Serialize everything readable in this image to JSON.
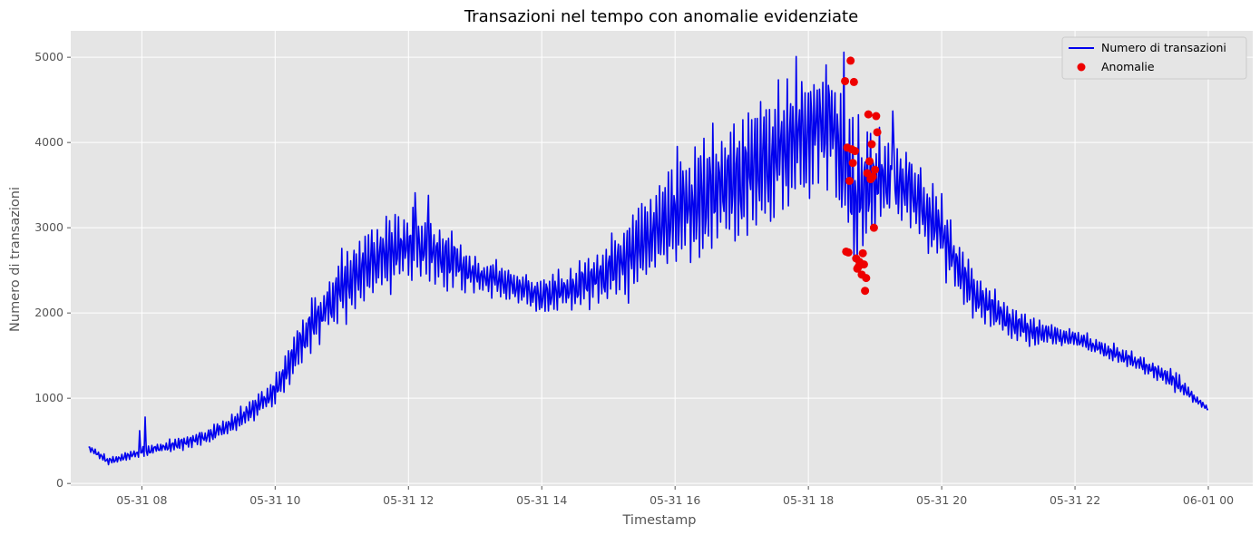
{
  "chart_data": {
    "type": "line",
    "title": "Transazioni nel tempo con anomalie evidenziate",
    "xlabel": "Timestamp",
    "ylabel": "Numero di transazioni",
    "x_range": [
      "2024-05-31T06:56",
      "2024-06-01T00:40"
    ],
    "ylim": [
      -30,
      5310
    ],
    "x_ticks": [
      "05-31 08",
      "05-31 10",
      "05-31 12",
      "05-31 14",
      "05-31 16",
      "05-31 18",
      "05-31 20",
      "05-31 22",
      "06-01 00"
    ],
    "y_ticks": [
      0,
      1000,
      2000,
      3000,
      4000,
      5000
    ],
    "grid": true,
    "legend_position": "top-right",
    "colors": {
      "line": "#0000ee",
      "anomaly": "#ee0000",
      "plot_background": "#e5e5e5",
      "grid": "#ffffff"
    },
    "series": [
      {
        "name": "Numero di transazioni",
        "kind": "line",
        "start": "2024-05-31T07:12",
        "end": "2024-06-01T00:00",
        "envelope": [
          [
            "2024-05-31T07:12",
            420,
            40
          ],
          [
            "2024-05-31T07:30",
            260,
            50
          ],
          [
            "2024-05-31T08:00",
            370,
            60
          ],
          [
            "2024-05-31T08:30",
            450,
            80
          ],
          [
            "2024-05-31T09:00",
            560,
            100
          ],
          [
            "2024-05-31T09:30",
            760,
            140
          ],
          [
            "2024-05-31T10:00",
            1100,
            200
          ],
          [
            "2024-05-31T10:30",
            1800,
            350
          ],
          [
            "2024-05-31T11:00",
            2300,
            450
          ],
          [
            "2024-05-31T11:30",
            2650,
            500
          ],
          [
            "2024-05-31T12:00",
            2800,
            450
          ],
          [
            "2024-05-31T12:30",
            2700,
            420
          ],
          [
            "2024-05-31T13:00",
            2450,
            250
          ],
          [
            "2024-05-31T13:30",
            2350,
            220
          ],
          [
            "2024-05-31T14:00",
            2200,
            260
          ],
          [
            "2024-05-31T14:30",
            2300,
            280
          ],
          [
            "2024-05-31T15:00",
            2500,
            420
          ],
          [
            "2024-05-31T15:30",
            2800,
            550
          ],
          [
            "2024-05-31T16:00",
            3150,
            700
          ],
          [
            "2024-05-31T16:30",
            3400,
            800
          ],
          [
            "2024-05-31T17:00",
            3600,
            850
          ],
          [
            "2024-05-31T17:30",
            3850,
            900
          ],
          [
            "2024-05-31T18:00",
            4150,
            850
          ],
          [
            "2024-05-31T18:20",
            4300,
            800
          ],
          [
            "2024-05-31T18:40",
            3300,
            1000
          ],
          [
            "2024-05-31T19:00",
            3600,
            700
          ],
          [
            "2024-05-31T19:30",
            3500,
            500
          ],
          [
            "2024-05-31T20:00",
            2900,
            450
          ],
          [
            "2024-05-31T20:30",
            2200,
            300
          ],
          [
            "2024-05-31T21:00",
            1900,
            220
          ],
          [
            "2024-05-31T21:30",
            1750,
            160
          ],
          [
            "2024-05-31T22:00",
            1700,
            110
          ],
          [
            "2024-05-31T22:30",
            1550,
            110
          ],
          [
            "2024-05-31T23:00",
            1400,
            110
          ],
          [
            "2024-05-31T23:30",
            1200,
            130
          ],
          [
            "2024-06-01T00:00",
            870,
            20
          ]
        ],
        "spikes": [
          [
            "2024-05-31T07:58",
            620
          ],
          [
            "2024-05-31T08:03",
            780
          ],
          [
            "2024-05-31T12:06",
            3410
          ],
          [
            "2024-05-31T12:18",
            3380
          ],
          [
            "2024-05-31T18:32",
            5060
          ],
          [
            "2024-05-31T19:16",
            4370
          ]
        ]
      },
      {
        "name": "Anomalie",
        "kind": "scatter",
        "points": [
          [
            "2024-05-31T18:33",
            4720
          ],
          [
            "2024-05-31T18:34",
            2720
          ],
          [
            "2024-05-31T18:35",
            3940
          ],
          [
            "2024-05-31T18:36",
            2710
          ],
          [
            "2024-05-31T18:37",
            3550
          ],
          [
            "2024-05-31T18:38",
            4960
          ],
          [
            "2024-05-31T18:39",
            3920
          ],
          [
            "2024-05-31T18:40",
            3760
          ],
          [
            "2024-05-31T18:41",
            4710
          ],
          [
            "2024-05-31T18:42",
            3900
          ],
          [
            "2024-05-31T18:43",
            2640
          ],
          [
            "2024-05-31T18:44",
            2520
          ],
          [
            "2024-05-31T18:45",
            2540
          ],
          [
            "2024-05-31T18:46",
            2600
          ],
          [
            "2024-05-31T18:48",
            2450
          ],
          [
            "2024-05-31T18:49",
            2700
          ],
          [
            "2024-05-31T18:50",
            2570
          ],
          [
            "2024-05-31T18:51",
            2260
          ],
          [
            "2024-05-31T18:52",
            2410
          ],
          [
            "2024-05-31T18:53",
            3640
          ],
          [
            "2024-05-31T18:54",
            4330
          ],
          [
            "2024-05-31T18:55",
            3780
          ],
          [
            "2024-05-31T18:56",
            3570
          ],
          [
            "2024-05-31T18:57",
            3980
          ],
          [
            "2024-05-31T18:58",
            3600
          ],
          [
            "2024-05-31T18:59",
            3000
          ],
          [
            "2024-05-31T19:00",
            3680
          ],
          [
            "2024-05-31T19:01",
            4310
          ],
          [
            "2024-05-31T19:02",
            4120
          ]
        ]
      }
    ]
  }
}
